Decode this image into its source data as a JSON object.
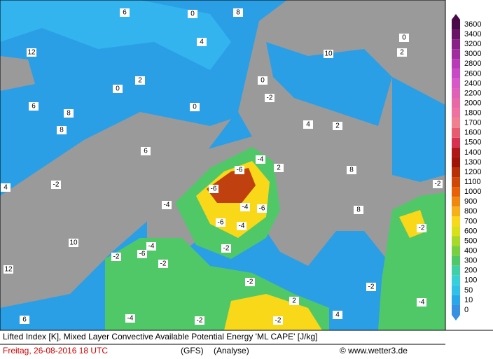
{
  "map": {
    "caption": "Lifted Index [K], Mixed Layer Convective Available Potential Energy 'ML CAPE' [J/kg]",
    "date": "Freitag, 26-08-2016  18 UTC",
    "model": "(GFS)",
    "run": "(Analyse)",
    "credit": "© www.wetter3.de",
    "legend": {
      "levels": [
        {
          "value": 3600,
          "color": "#4a0a4a"
        },
        {
          "value": 3400,
          "color": "#6a1468"
        },
        {
          "value": 3200,
          "color": "#882088"
        },
        {
          "value": 3000,
          "color": "#a02ca0"
        },
        {
          "value": 2800,
          "color": "#b83ab8"
        },
        {
          "value": 2600,
          "color": "#c848c8"
        },
        {
          "value": 2400,
          "color": "#d858c8"
        },
        {
          "value": 2200,
          "color": "#e060b8"
        },
        {
          "value": 2000,
          "color": "#e868a8"
        },
        {
          "value": 1800,
          "color": "#f070a0"
        },
        {
          "value": 1700,
          "color": "#f08090"
        },
        {
          "value": 1600,
          "color": "#e85a70"
        },
        {
          "value": 1500,
          "color": "#d83050"
        },
        {
          "value": 1400,
          "color": "#b01818"
        },
        {
          "value": 1300,
          "color": "#a01408"
        },
        {
          "value": 1200,
          "color": "#b83008"
        },
        {
          "value": 1100,
          "color": "#d04808"
        },
        {
          "value": 1000,
          "color": "#e86008"
        },
        {
          "value": 900,
          "color": "#f08810"
        },
        {
          "value": 800,
          "color": "#f8b018"
        },
        {
          "value": 700,
          "color": "#f8d818"
        },
        {
          "value": 600,
          "color": "#d8e018"
        },
        {
          "value": 500,
          "color": "#a8d828"
        },
        {
          "value": 400,
          "color": "#78d040"
        },
        {
          "value": 300,
          "color": "#50c868"
        },
        {
          "value": 200,
          "color": "#40d0a8"
        },
        {
          "value": 100,
          "color": "#38d0d8"
        },
        {
          "value": 50,
          "color": "#30c0e8"
        },
        {
          "value": 10,
          "color": "#28a8e8"
        },
        {
          "value": 0,
          "color": "#3890e0"
        }
      ]
    },
    "contour_labels": [
      6,
      0,
      4,
      12,
      2,
      0,
      0,
      6,
      8,
      8,
      6,
      4,
      -2,
      10,
      12,
      6,
      -4,
      -2,
      -2,
      4,
      -6,
      -6,
      -4,
      -4,
      -6,
      -6,
      -4,
      -4,
      -4,
      -6,
      -2,
      -2,
      -2,
      -2,
      -2,
      -2,
      -2,
      -4,
      2,
      8,
      8,
      2,
      0,
      2,
      10,
      8,
      -2,
      0,
      4,
      2
    ]
  }
}
